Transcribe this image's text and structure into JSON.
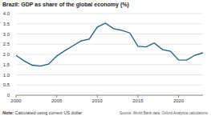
{
  "chart_data": {
    "type": "line",
    "title": "Brazil: GDP as share of the global economy (%)",
    "x": [
      2000,
      2001,
      2002,
      2003,
      2004,
      2005,
      2006,
      2007,
      2008,
      2009,
      2010,
      2011,
      2012,
      2013,
      2014,
      2015,
      2016,
      2017,
      2018,
      2019,
      2020,
      2021,
      2022,
      2023
    ],
    "values": [
      1.95,
      1.68,
      1.47,
      1.43,
      1.52,
      1.92,
      2.18,
      2.42,
      2.66,
      2.75,
      3.34,
      3.53,
      3.26,
      3.18,
      3.05,
      2.4,
      2.37,
      2.56,
      2.24,
      2.15,
      1.73,
      1.72,
      1.96,
      2.08
    ],
    "color": "#1b5e82",
    "xlim": [
      2000,
      2023
    ],
    "xticks": [
      2000,
      2005,
      2010,
      2015,
      2020
    ],
    "ylim": [
      0,
      4
    ],
    "yticks": [
      0,
      {
        "value": 0.5,
        "label": "0.5"
      },
      {
        "value": 1,
        "label": "1.0"
      },
      {
        "value": 1.5,
        "label": "1.5"
      },
      {
        "value": 2,
        "label": "2.0"
      },
      {
        "value": 2.5,
        "label": "2.5"
      },
      {
        "value": 3,
        "label": "3.0"
      },
      {
        "value": 3.5,
        "label": "3.5"
      },
      {
        "value": 4,
        "label": "4.0"
      }
    ],
    "grid": true,
    "annotations": [
      "Note: Calculated using current US dollar",
      "Source: World Bank data, Oxford Analytica calculations"
    ]
  }
}
